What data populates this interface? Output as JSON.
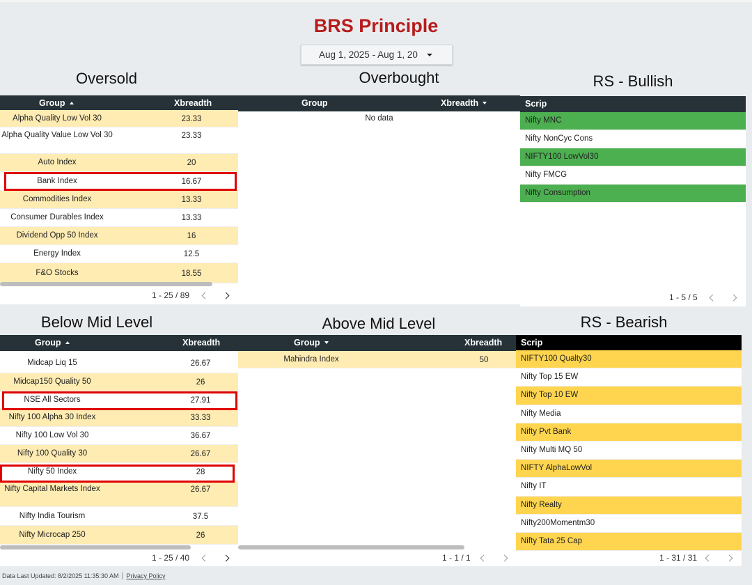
{
  "title": "BRS Principle",
  "date_range": "Aug 1, 2025 - Aug 1, 20",
  "oversold": {
    "title": "Oversold",
    "col_group": "Group",
    "col_value": "Xbreadth",
    "rows": [
      {
        "group": "Alpha Quality Low Vol 30",
        "value": "23.33"
      },
      {
        "group": "Alpha Quality Value Low Vol 30",
        "value": "23.33"
      },
      {
        "group": "Auto Index",
        "value": "20"
      },
      {
        "group": "Bank Index",
        "value": "16.67"
      },
      {
        "group": "Commodities Index",
        "value": "13.33"
      },
      {
        "group": "Consumer Durables Index",
        "value": "13.33"
      },
      {
        "group": "Dividend Opp 50 Index",
        "value": "16"
      },
      {
        "group": "Energy Index",
        "value": "12.5"
      },
      {
        "group": "F&O Stocks",
        "value": "18.55"
      }
    ],
    "pager": "1 - 25 / 89"
  },
  "overbought": {
    "title": "Overbought",
    "col_group": "Group",
    "col_value": "Xbreadth",
    "empty": "No data"
  },
  "rs_bullish": {
    "title": "RS - Bullish",
    "col": "Scrip",
    "rows": [
      "Nifty MNC",
      "Nifty NonCyc Cons",
      "NIFTY100 LowVol30",
      "Nifty FMCG",
      "Nifty Consumption"
    ],
    "pager": "1 - 5 / 5"
  },
  "below_mid": {
    "title": "Below Mid Level",
    "col_group": "Group",
    "col_value": "Xbreadth",
    "rows": [
      {
        "group": "Midcap Liq 15",
        "value": "26.67"
      },
      {
        "group": "Midcap150 Quality 50",
        "value": "26"
      },
      {
        "group": "NSE All Sectors",
        "value": "27.91"
      },
      {
        "group": "Nifty 100 Alpha 30 Index",
        "value": "33.33"
      },
      {
        "group": "Nifty 100 Low Vol 30",
        "value": "36.67"
      },
      {
        "group": "Nifty 100 Quality 30",
        "value": "26.67"
      },
      {
        "group": "Nifty 50 Index",
        "value": "28"
      },
      {
        "group": "Nifty Capital Markets Index",
        "value": "26.67"
      },
      {
        "group": "Nifty India Tourism",
        "value": "37.5"
      },
      {
        "group": "Nifty Microcap 250",
        "value": "26"
      }
    ],
    "pager": "1 - 25 / 40"
  },
  "above_mid": {
    "title": "Above Mid Level",
    "col_group": "Group",
    "col_value": "Xbreadth",
    "rows": [
      {
        "group": "Mahindra Index",
        "value": "50"
      }
    ],
    "pager": "1 - 1 / 1"
  },
  "rs_bearish": {
    "title": "RS - Bearish",
    "col": "Scrip",
    "rows": [
      "NIFTY100 Qualty30",
      "Nifty Top 15 EW",
      "Nifty Top 10 EW",
      "Nifty Media",
      "Nifty Pvt Bank",
      "Nifty Multi MQ 50",
      "NIFTY AlphaLowVol",
      "Nifty IT",
      "Nifty Realty",
      "Nifty200Momentm30",
      "Nifty Tata 25 Cap"
    ],
    "pager": "1 - 31 / 31"
  },
  "footer": {
    "updated": "Data Last Updated: 8/2/2025 11:35:30 AM",
    "privacy": "Privacy Policy"
  },
  "colors": {
    "title": "#b71c1c",
    "header_bg": "#263238",
    "row_alt": "#ffecb3",
    "bullish": "#4caf50",
    "bearish": "#ffd54f",
    "highlight": "#e00000"
  }
}
